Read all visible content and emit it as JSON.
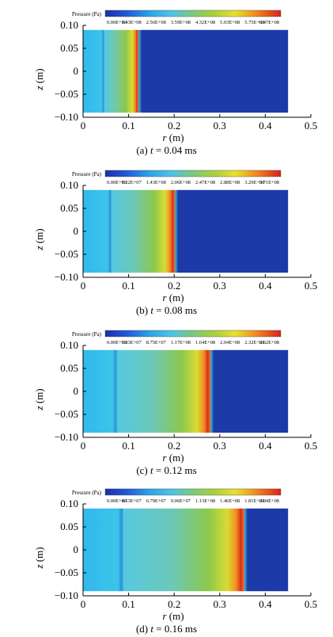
{
  "figure": {
    "panels": [
      {
        "caption_prefix": "(a)",
        "caption_var": "t",
        "caption_value": "= 0.04 ms",
        "colorbar": {
          "title": "Pressure (Pa)",
          "ticks": [
            "0.00E+00",
            "1.43E+08",
            "2.56E+08",
            "3.59E+08",
            "4.32E+08",
            "5.03E+08",
            "5.75E+08",
            "6.47E+08"
          ]
        }
      },
      {
        "caption_prefix": "(b)",
        "caption_var": "t",
        "caption_value": "= 0.08 ms",
        "colorbar": {
          "title": "Pressure (Pa)",
          "ticks": [
            "0.00E+00",
            "8.22E+07",
            "1.43E+08",
            "2.06E+08",
            "2.47E+08",
            "2.88E+08",
            "3.29E+08",
            "3.71E+08"
          ]
        }
      },
      {
        "caption_prefix": "(c)",
        "caption_var": "t",
        "caption_value": "= 0.12 ms",
        "colorbar": {
          "title": "Pressure (Pa)",
          "ticks": [
            "0.00E+00",
            "5.83E+07",
            "8.75E+07",
            "1.17E+08",
            "1.64E+08",
            "2.04E+08",
            "2.32E+08",
            "2.62E+08"
          ]
        }
      },
      {
        "caption_prefix": "(d)",
        "caption_var": "t",
        "caption_value": "= 0.16 ms",
        "colorbar": {
          "title": "Pressure (Pa)",
          "ticks": [
            "0.00E+00",
            "4.53E+07",
            "6.79E+07",
            "9.06E+07",
            "1.13E+08",
            "1.46E+08",
            "1.81E+08",
            "2.04E+08"
          ]
        }
      }
    ]
  },
  "chart_data": [
    {
      "type": "heatmap",
      "xlabel_var": "r",
      "xlabel_unit": "(m)",
      "ylabel_var": "z",
      "ylabel_unit": "(m)",
      "xlim": [
        0,
        0.5
      ],
      "ylim": [
        -0.1,
        0.1
      ],
      "x_ticks": [
        "0",
        "0.1",
        "0.2",
        "0.3",
        "0.4",
        "0.5"
      ],
      "y_ticks": [
        "0.10",
        "0.05",
        "0",
        "-0.05",
        "-0.10"
      ],
      "domain_r": [
        0,
        0.45
      ],
      "domain_z": [
        -0.09,
        0.09
      ],
      "wave_front_r": 0.12,
      "inner_band_r": 0.045,
      "fields": "pressure wave pattern"
    },
    {
      "type": "heatmap",
      "xlabel_var": "r",
      "xlabel_unit": "(m)",
      "ylabel_var": "z",
      "ylabel_unit": "(m)",
      "xlim": [
        0,
        0.5
      ],
      "ylim": [
        -0.1,
        0.1
      ],
      "x_ticks": [
        "0",
        "0.1",
        "0.2",
        "0.3",
        "0.4",
        "0.5"
      ],
      "y_ticks": [
        "0.10",
        "0.05",
        "0",
        "-0.05",
        "-0.10"
      ],
      "domain_r": [
        0,
        0.45
      ],
      "domain_z": [
        -0.09,
        0.09
      ],
      "wave_front_r": 0.2,
      "inner_band_r": 0.06
    },
    {
      "type": "heatmap",
      "xlabel_var": "r",
      "xlabel_unit": "(m)",
      "ylabel_var": "z",
      "ylabel_unit": "(m)",
      "xlim": [
        0,
        0.5
      ],
      "ylim": [
        -0.1,
        0.1
      ],
      "x_ticks": [
        "0",
        "0.1",
        "0.2",
        "0.3",
        "0.4",
        "0.5"
      ],
      "y_ticks": [
        "0.10",
        "0.05",
        "0",
        "-0.05",
        "-0.10"
      ],
      "domain_r": [
        0,
        0.45
      ],
      "domain_z": [
        -0.09,
        0.09
      ],
      "wave_front_r": 0.278,
      "inner_band_r": 0.072
    },
    {
      "type": "heatmap",
      "xlabel_var": "r",
      "xlabel_unit": "(m)",
      "ylabel_var": "z",
      "ylabel_unit": "(m)",
      "xlim": [
        0,
        0.5
      ],
      "ylim": [
        -0.1,
        0.1
      ],
      "x_ticks": [
        "0",
        "0.1",
        "0.2",
        "0.3",
        "0.4",
        "0.5"
      ],
      "y_ticks": [
        "0.10",
        "0.05",
        "0",
        "-0.05",
        "-0.10"
      ],
      "domain_r": [
        0,
        0.45
      ],
      "domain_z": [
        -0.09,
        0.09
      ],
      "wave_front_r": 0.352,
      "inner_band_r": 0.085
    }
  ]
}
